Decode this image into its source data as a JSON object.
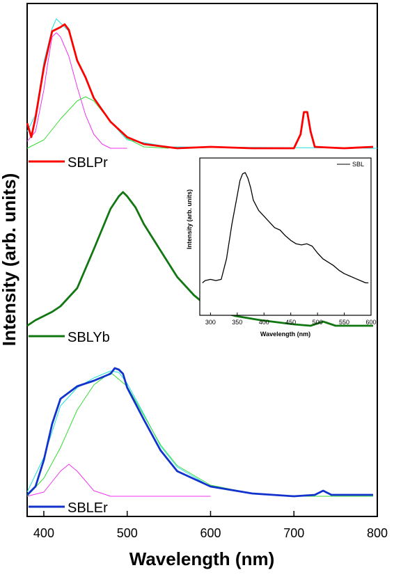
{
  "chart_data": [
    {
      "type": "line",
      "xlabel": "Wavelength (nm)",
      "ylabel": "Intensity (arb. units)",
      "xlim": [
        380,
        800
      ],
      "xticks": [
        400,
        500,
        600,
        700,
        800
      ],
      "yticks_shown": false,
      "legend_placement": "inline, left of each curve",
      "series": [
        {
          "name": "SBLPr",
          "color": "#ff0000",
          "kind": "data",
          "panel": "top",
          "x": [
            380,
            385,
            390,
            400,
            410,
            420,
            425,
            430,
            440,
            450,
            460,
            480,
            500,
            520,
            560,
            600,
            650,
            700,
            708,
            712,
            716,
            720,
            725,
            760,
            795
          ],
          "y": [
            0.18,
            0.08,
            0.22,
            0.58,
            0.84,
            0.87,
            0.89,
            0.85,
            0.63,
            0.51,
            0.36,
            0.19,
            0.08,
            0.03,
            0.0,
            0.01,
            0.0,
            0.0,
            0.1,
            0.26,
            0.26,
            0.12,
            0.01,
            0.0,
            0.01
          ]
        },
        {
          "name": "SBLPr fit total",
          "color": "#22dddd",
          "kind": "fit",
          "panel": "top",
          "x": [
            380,
            390,
            400,
            410,
            415,
            420,
            430,
            440,
            450,
            460,
            480,
            500,
            550,
            800
          ],
          "y": [
            0.12,
            0.24,
            0.62,
            0.86,
            0.93,
            0.9,
            0.84,
            0.64,
            0.51,
            0.37,
            0.19,
            0.06,
            0.01,
            0.0
          ]
        },
        {
          "name": "SBLPr fit peak 1",
          "color": "#ee33ee",
          "kind": "fit",
          "panel": "top",
          "x": [
            380,
            390,
            400,
            405,
            410,
            415,
            420,
            430,
            440,
            450,
            460,
            470,
            480,
            500
          ],
          "y": [
            0.05,
            0.12,
            0.42,
            0.62,
            0.8,
            0.83,
            0.8,
            0.66,
            0.44,
            0.24,
            0.1,
            0.03,
            0.0,
            0.0
          ]
        },
        {
          "name": "SBLPr fit peak 2",
          "color": "#33dd33",
          "kind": "fit",
          "panel": "top",
          "x": [
            380,
            400,
            420,
            440,
            450,
            460,
            480,
            500,
            520,
            550
          ],
          "y": [
            0.0,
            0.06,
            0.21,
            0.34,
            0.37,
            0.34,
            0.19,
            0.07,
            0.01,
            0.0
          ]
        },
        {
          "name": "SBLYb",
          "color": "#117711",
          "kind": "data",
          "panel": "middle",
          "x": [
            380,
            390,
            400,
            410,
            420,
            440,
            460,
            480,
            490,
            495,
            500,
            510,
            520,
            540,
            560,
            580,
            600,
            630,
            660,
            700,
            720,
            735,
            750,
            795
          ],
          "y": [
            0.0,
            0.04,
            0.07,
            0.1,
            0.14,
            0.27,
            0.55,
            0.84,
            0.93,
            0.96,
            0.93,
            0.85,
            0.73,
            0.54,
            0.35,
            0.22,
            0.12,
            0.07,
            0.04,
            0.01,
            0.0,
            0.03,
            0.0,
            0.0
          ]
        },
        {
          "name": "SBLEr",
          "color": "#1133cc",
          "kind": "data",
          "panel": "bottom",
          "x": [
            380,
            390,
            400,
            410,
            420,
            440,
            460,
            480,
            485,
            490,
            495,
            500,
            520,
            540,
            560,
            600,
            650,
            700,
            725,
            735,
            745,
            795
          ],
          "y": [
            0.01,
            0.07,
            0.26,
            0.52,
            0.7,
            0.79,
            0.83,
            0.88,
            0.92,
            0.91,
            0.88,
            0.78,
            0.55,
            0.33,
            0.18,
            0.07,
            0.02,
            0.0,
            0.01,
            0.04,
            0.01,
            0.01
          ]
        },
        {
          "name": "SBLEr fit total",
          "color": "#22dddd",
          "kind": "fit",
          "panel": "bottom",
          "x": [
            380,
            400,
            420,
            440,
            460,
            480,
            490,
            500,
            520,
            540,
            560,
            600,
            650,
            700,
            795
          ],
          "y": [
            0.03,
            0.28,
            0.65,
            0.78,
            0.85,
            0.9,
            0.89,
            0.81,
            0.59,
            0.36,
            0.21,
            0.07,
            0.02,
            0.0,
            0.0
          ]
        },
        {
          "name": "SBLEr fit peak 1",
          "color": "#ee33ee",
          "kind": "fit",
          "panel": "bottom",
          "x": [
            380,
            400,
            420,
            430,
            440,
            460,
            480,
            500,
            600
          ],
          "y": [
            0.0,
            0.03,
            0.18,
            0.23,
            0.18,
            0.04,
            0.0,
            0.0,
            0.0
          ]
        },
        {
          "name": "SBLEr fit peak 2",
          "color": "#33dd33",
          "kind": "fit",
          "panel": "bottom",
          "x": [
            380,
            400,
            420,
            440,
            460,
            480,
            500,
            520,
            540,
            560,
            600,
            650,
            700,
            795
          ],
          "y": [
            0.0,
            0.13,
            0.35,
            0.62,
            0.8,
            0.89,
            0.79,
            0.58,
            0.37,
            0.22,
            0.08,
            0.02,
            0.0,
            0.0
          ]
        }
      ],
      "legend": [
        {
          "label": "SBLPr",
          "color": "#ff0000"
        },
        {
          "label": "SBLYb",
          "color": "#117711"
        },
        {
          "label": "SBLEr",
          "color": "#1133cc"
        }
      ]
    },
    {
      "type": "line",
      "xlabel": "Wavelength (nm)",
      "ylabel": "Intensity (arb. units)",
      "xlim": [
        280,
        600
      ],
      "xticks": [
        300,
        350,
        400,
        450,
        500,
        550,
        600
      ],
      "legend_placement": "top-right",
      "series": [
        {
          "name": "SBL",
          "color": "#000000",
          "x": [
            285,
            290,
            300,
            310,
            320,
            330,
            340,
            350,
            355,
            360,
            365,
            370,
            375,
            380,
            390,
            400,
            410,
            420,
            430,
            440,
            450,
            460,
            470,
            480,
            490,
            500,
            510,
            520,
            530,
            540,
            550,
            560,
            570,
            580,
            590,
            595
          ],
          "y": [
            0.04,
            0.06,
            0.07,
            0.06,
            0.07,
            0.25,
            0.55,
            0.8,
            0.93,
            0.99,
            1.0,
            0.95,
            0.87,
            0.76,
            0.67,
            0.62,
            0.57,
            0.52,
            0.5,
            0.45,
            0.41,
            0.38,
            0.37,
            0.38,
            0.36,
            0.3,
            0.25,
            0.22,
            0.19,
            0.15,
            0.12,
            0.1,
            0.08,
            0.06,
            0.04,
            0.04
          ]
        }
      ],
      "legend": [
        {
          "label": "SBL",
          "color": "#000000"
        }
      ]
    }
  ]
}
